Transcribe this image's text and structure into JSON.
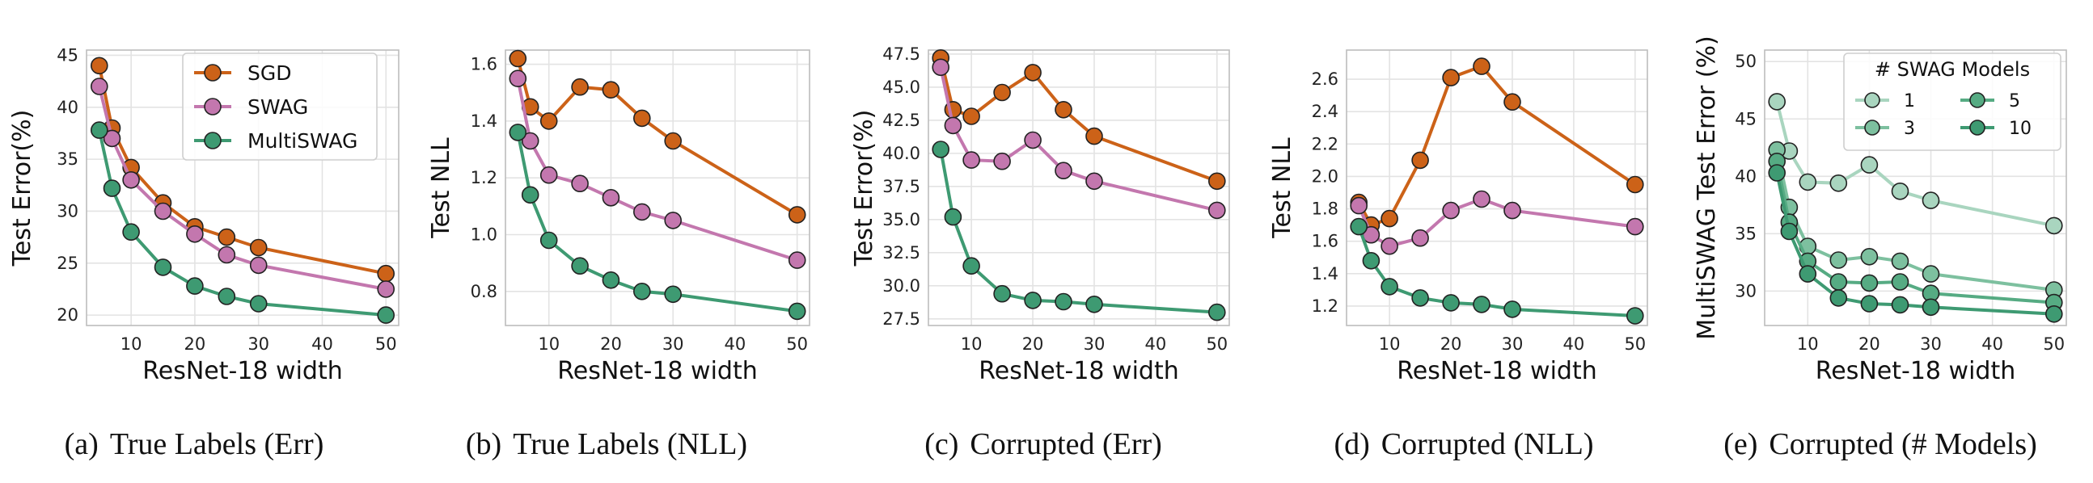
{
  "figure": {
    "colors": {
      "sgd": "#CC6218",
      "swag": "#C377AE",
      "multiswag": "#3E9A72",
      "grid": "#E3E3E3",
      "axis": "#333333"
    },
    "captions": [
      {
        "letter": "(a)",
        "text": "True Labels (Err)"
      },
      {
        "letter": "(b)",
        "text": "True Labels (NLL)"
      },
      {
        "letter": "(c)",
        "text": "Corrupted (Err)"
      },
      {
        "letter": "(d)",
        "text": "Corrupted (NLL)"
      },
      {
        "letter": "(e)",
        "text": "Corrupted (# Models)"
      }
    ]
  },
  "chart_data": [
    {
      "type": "line",
      "xlabel": "ResNet-18 width",
      "ylabel": "Test Error(%)",
      "xlim": [
        3,
        52
      ],
      "ylim": [
        19,
        45.5
      ],
      "xticks": [
        10,
        20,
        30,
        40,
        50
      ],
      "yticks": [
        20,
        25,
        30,
        35,
        40,
        45
      ],
      "ytick_labels": [
        "20",
        "25",
        "30",
        "35",
        "40",
        "45"
      ],
      "x": [
        5,
        7,
        10,
        15,
        20,
        25,
        30,
        50
      ],
      "legend": {
        "position": "top-right",
        "title": ""
      },
      "series": [
        {
          "name": "SGD",
          "color": "#CC6218",
          "values": [
            44.0,
            38.0,
            34.2,
            30.8,
            28.5,
            27.5,
            26.5,
            24.0
          ]
        },
        {
          "name": "SWAG",
          "color": "#C377AE",
          "values": [
            42.0,
            37.0,
            33.0,
            30.0,
            27.8,
            25.8,
            24.8,
            22.5
          ]
        },
        {
          "name": "MultiSWAG",
          "color": "#3E9A72",
          "values": [
            37.8,
            32.2,
            28.0,
            24.6,
            22.8,
            21.8,
            21.1,
            20.0
          ]
        }
      ]
    },
    {
      "type": "line",
      "xlabel": "ResNet-18 width",
      "ylabel": "Test NLL",
      "xlim": [
        3,
        52
      ],
      "ylim": [
        0.68,
        1.65
      ],
      "xticks": [
        10,
        20,
        30,
        40,
        50
      ],
      "yticks": [
        0.8,
        1.0,
        1.2,
        1.4,
        1.6
      ],
      "ytick_labels": [
        "0.8",
        "1.0",
        "1.2",
        "1.4",
        "1.6"
      ],
      "x": [
        5,
        7,
        10,
        15,
        20,
        25,
        30,
        50
      ],
      "series": [
        {
          "name": "SGD",
          "color": "#CC6218",
          "values": [
            1.62,
            1.45,
            1.4,
            1.52,
            1.51,
            1.41,
            1.33,
            1.07
          ]
        },
        {
          "name": "SWAG",
          "color": "#C377AE",
          "values": [
            1.55,
            1.33,
            1.21,
            1.18,
            1.13,
            1.08,
            1.05,
            0.91
          ]
        },
        {
          "name": "MultiSWAG",
          "color": "#3E9A72",
          "values": [
            1.36,
            1.14,
            0.98,
            0.89,
            0.84,
            0.8,
            0.79,
            0.73
          ]
        }
      ]
    },
    {
      "type": "line",
      "xlabel": "ResNet-18 width",
      "ylabel": "Test Error(%)",
      "xlim": [
        3,
        52
      ],
      "ylim": [
        27.0,
        47.8
      ],
      "xticks": [
        10,
        20,
        30,
        40,
        50
      ],
      "yticks": [
        27.5,
        30.0,
        32.5,
        35.0,
        37.5,
        40.0,
        42.5,
        45.0,
        47.5
      ],
      "ytick_labels": [
        "27.5",
        "30.0",
        "32.5",
        "35.0",
        "37.5",
        "40.0",
        "42.5",
        "45.0",
        "47.5"
      ],
      "x": [
        5,
        7,
        10,
        15,
        20,
        25,
        30,
        50
      ],
      "series": [
        {
          "name": "SGD",
          "color": "#CC6218",
          "values": [
            47.2,
            43.3,
            42.8,
            44.6,
            46.1,
            43.3,
            41.3,
            37.9
          ]
        },
        {
          "name": "SWAG",
          "color": "#C377AE",
          "values": [
            46.5,
            42.1,
            39.5,
            39.4,
            41.0,
            38.7,
            37.9,
            35.7
          ]
        },
        {
          "name": "MultiSWAG",
          "color": "#3E9A72",
          "values": [
            40.3,
            35.2,
            31.5,
            29.4,
            28.9,
            28.8,
            28.6,
            28.0
          ]
        }
      ]
    },
    {
      "type": "line",
      "xlabel": "ResNet-18 width",
      "ylabel": "Test NLL",
      "xlim": [
        3,
        52
      ],
      "ylim": [
        1.08,
        2.78
      ],
      "xticks": [
        10,
        20,
        30,
        40,
        50
      ],
      "yticks": [
        1.2,
        1.4,
        1.6,
        1.8,
        2.0,
        2.2,
        2.4,
        2.6
      ],
      "ytick_labels": [
        "1.2",
        "1.4",
        "1.6",
        "1.8",
        "2.0",
        "2.2",
        "2.4",
        "2.6"
      ],
      "x": [
        5,
        7,
        10,
        15,
        20,
        25,
        30,
        50
      ],
      "series": [
        {
          "name": "SGD",
          "color": "#CC6218",
          "values": [
            1.84,
            1.7,
            1.74,
            2.1,
            2.61,
            2.68,
            2.46,
            1.95
          ]
        },
        {
          "name": "SWAG",
          "color": "#C377AE",
          "values": [
            1.82,
            1.64,
            1.57,
            1.62,
            1.79,
            1.86,
            1.79,
            1.69
          ]
        },
        {
          "name": "MultiSWAG",
          "color": "#3E9A72",
          "values": [
            1.69,
            1.48,
            1.32,
            1.25,
            1.22,
            1.21,
            1.18,
            1.14
          ]
        }
      ]
    },
    {
      "type": "line",
      "xlabel": "ResNet-18 width",
      "ylabel": "MultiSWAG Test Error (%)",
      "xlim": [
        3,
        52
      ],
      "ylim": [
        27.0,
        51.0
      ],
      "xticks": [
        10,
        20,
        30,
        40,
        50
      ],
      "yticks": [
        30,
        35,
        40,
        45,
        50
      ],
      "ytick_labels": [
        "30",
        "35",
        "40",
        "45",
        "50"
      ],
      "x": [
        5,
        7,
        10,
        15,
        20,
        25,
        30,
        50
      ],
      "legend": {
        "position": "top-right",
        "title": "# SWAG Models",
        "columns": 2
      },
      "series": [
        {
          "name": "1",
          "color": "#A9D5BF",
          "values": [
            46.5,
            42.2,
            39.5,
            39.4,
            41.0,
            38.7,
            37.9,
            35.7
          ]
        },
        {
          "name": "3",
          "color": "#7DC09F",
          "values": [
            42.3,
            37.3,
            33.9,
            32.7,
            33.0,
            32.6,
            31.5,
            30.1
          ]
        },
        {
          "name": "5",
          "color": "#56AB83",
          "values": [
            41.3,
            36.0,
            32.6,
            30.8,
            30.7,
            30.8,
            29.8,
            29.0
          ]
        },
        {
          "name": "10",
          "color": "#3E9A72",
          "values": [
            40.3,
            35.2,
            31.5,
            29.4,
            28.9,
            28.8,
            28.6,
            28.0
          ]
        }
      ]
    }
  ]
}
